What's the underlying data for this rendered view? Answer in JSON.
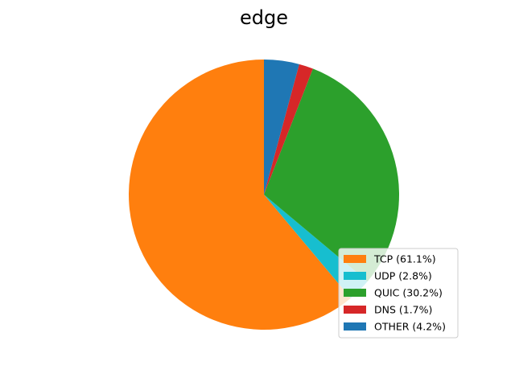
{
  "chart_data": {
    "type": "pie",
    "title": "edge",
    "slices": [
      {
        "label": "TCP",
        "percent": 61.1,
        "color": "#ff7f0e",
        "legend_label": "TCP (61.1%)"
      },
      {
        "label": "UDP",
        "percent": 2.8,
        "color": "#17becf",
        "legend_label": "UDP (2.8%)"
      },
      {
        "label": "QUIC",
        "percent": 30.2,
        "color": "#2ca02c",
        "legend_label": "QUIC (30.2%)"
      },
      {
        "label": "DNS",
        "percent": 1.7,
        "color": "#d62728",
        "legend_label": "DNS (1.7%)"
      },
      {
        "label": "OTHER",
        "percent": 4.2,
        "color": "#1f77b4",
        "legend_label": "OTHER (4.2%)"
      }
    ],
    "legend_position": "lower-right"
  }
}
